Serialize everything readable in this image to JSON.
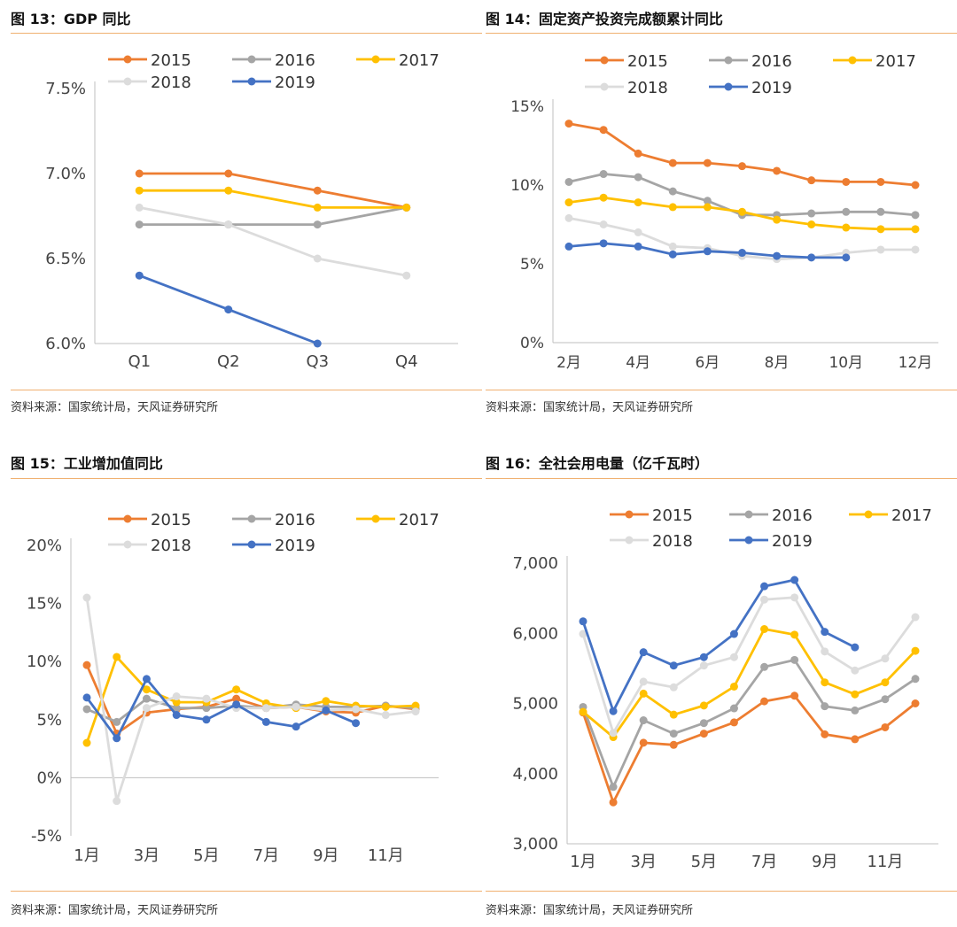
{
  "panels": [
    {
      "title": "图 13：GDP 同比",
      "source": "资料来源：国家统计局，天风证券研究所",
      "chart_data": {
        "type": "line",
        "categories": [
          "Q1",
          "Q2",
          "Q3",
          "Q4"
        ],
        "ylim": [
          6.0,
          7.5
        ],
        "yticks": [
          "6.0%",
          "6.5%",
          "7.0%",
          "7.5%"
        ],
        "series": [
          {
            "name": "2015",
            "color": "#ed7d31",
            "values": [
              7.0,
              7.0,
              6.9,
              6.8
            ]
          },
          {
            "name": "2016",
            "color": "#a5a5a5",
            "values": [
              6.7,
              6.7,
              6.7,
              6.8
            ]
          },
          {
            "name": "2017",
            "color": "#ffc000",
            "values": [
              6.9,
              6.9,
              6.8,
              6.8
            ]
          },
          {
            "name": "2018",
            "color": "#dcdcdc",
            "values": [
              6.8,
              6.7,
              6.5,
              6.4
            ]
          },
          {
            "name": "2019",
            "color": "#4472c4",
            "values": [
              6.4,
              6.2,
              6.0,
              null
            ]
          }
        ]
      }
    },
    {
      "title": "图 14：固定资产投资完成额累计同比",
      "source": "资料来源：国家统计局，天风证券研究所",
      "chart_data": {
        "type": "line",
        "categories": [
          "2月",
          "3月",
          "4月",
          "5月",
          "6月",
          "7月",
          "8月",
          "9月",
          "10月",
          "11月",
          "12月"
        ],
        "ylim": [
          0,
          15
        ],
        "yticks": [
          "0%",
          "5%",
          "10%",
          "15%"
        ],
        "xtick_labels": [
          "2月",
          "4月",
          "6月",
          "8月",
          "10月",
          "12月"
        ],
        "series": [
          {
            "name": "2015",
            "color": "#ed7d31",
            "values": [
              13.9,
              13.5,
              12.0,
              11.4,
              11.4,
              11.2,
              10.9,
              10.3,
              10.2,
              10.2,
              10.0
            ]
          },
          {
            "name": "2016",
            "color": "#a5a5a5",
            "values": [
              10.2,
              10.7,
              10.5,
              9.6,
              9.0,
              8.1,
              8.1,
              8.2,
              8.3,
              8.3,
              8.1
            ]
          },
          {
            "name": "2017",
            "color": "#ffc000",
            "values": [
              8.9,
              9.2,
              8.9,
              8.6,
              8.6,
              8.3,
              7.8,
              7.5,
              7.3,
              7.2,
              7.2
            ]
          },
          {
            "name": "2018",
            "color": "#dcdcdc",
            "values": [
              7.9,
              7.5,
              7.0,
              6.1,
              6.0,
              5.5,
              5.3,
              5.4,
              5.7,
              5.9,
              5.9
            ]
          },
          {
            "name": "2019",
            "color": "#4472c4",
            "values": [
              6.1,
              6.3,
              6.1,
              5.6,
              5.8,
              5.7,
              5.5,
              5.4,
              5.4,
              null,
              null
            ]
          }
        ]
      }
    },
    {
      "title": "图 15：工业增加值同比",
      "source": "资料来源：国家统计局，天风证券研究所",
      "chart_data": {
        "type": "line",
        "categories": [
          "1月",
          "2月",
          "3月",
          "4月",
          "5月",
          "6月",
          "7月",
          "8月",
          "9月",
          "10月",
          "11月",
          "12月"
        ],
        "ylim": [
          -5,
          20
        ],
        "yticks": [
          "-5%",
          "0%",
          "5%",
          "10%",
          "15%",
          "20%"
        ],
        "xtick_labels": [
          "1月",
          "3月",
          "5月",
          "7月",
          "9月",
          "11月"
        ],
        "series": [
          {
            "name": "2015",
            "color": "#ed7d31",
            "values": [
              9.7,
              3.8,
              5.6,
              5.9,
              6.1,
              6.8,
              6.0,
              6.1,
              5.7,
              5.6,
              6.2,
              5.9
            ]
          },
          {
            "name": "2016",
            "color": "#a5a5a5",
            "values": [
              5.9,
              4.8,
              6.8,
              6.0,
              6.0,
              6.2,
              6.0,
              6.3,
              6.1,
              6.1,
              6.2,
              6.0
            ]
          },
          {
            "name": "2017",
            "color": "#ffc000",
            "values": [
              3.0,
              10.4,
              7.6,
              6.5,
              6.5,
              7.6,
              6.4,
              6.0,
              6.6,
              6.2,
              6.1,
              6.2
            ]
          },
          {
            "name": "2018",
            "color": "#dcdcdc",
            "values": [
              15.5,
              -2.0,
              6.0,
              7.0,
              6.8,
              6.0,
              6.0,
              6.1,
              5.8,
              5.9,
              5.4,
              5.7
            ]
          },
          {
            "name": "2019",
            "color": "#4472c4",
            "values": [
              6.9,
              3.4,
              8.5,
              5.4,
              5.0,
              6.3,
              4.8,
              4.4,
              5.8,
              4.7,
              null,
              null
            ]
          }
        ]
      }
    },
    {
      "title": "图 16：全社会用电量（亿千瓦时）",
      "source": "资料来源：国家统计局，天风证券研究所",
      "chart_data": {
        "type": "line",
        "categories": [
          "1月",
          "2月",
          "3月",
          "4月",
          "5月",
          "6月",
          "7月",
          "8月",
          "9月",
          "10月",
          "11月",
          "12月"
        ],
        "ylim": [
          3000,
          7000
        ],
        "yticks": [
          "3,000",
          "4,000",
          "5,000",
          "6,000",
          "7,000"
        ],
        "xtick_labels": [
          "1月",
          "3月",
          "5月",
          "7月",
          "9月",
          "11月"
        ],
        "series": [
          {
            "name": "2015",
            "color": "#ed7d31",
            "values": [
              4870,
              3590,
              4440,
              4410,
              4570,
              4730,
              5030,
              5110,
              4560,
              4490,
              4660,
              5000
            ]
          },
          {
            "name": "2016",
            "color": "#a5a5a5",
            "values": [
              4950,
              3810,
              4760,
              4570,
              4720,
              4930,
              5520,
              5620,
              4960,
              4900,
              5060,
              5350
            ]
          },
          {
            "name": "2017",
            "color": "#ffc000",
            "values": [
              4880,
              4520,
              5140,
              4840,
              4970,
              5240,
              6060,
              5980,
              5300,
              5130,
              5300,
              5750
            ]
          },
          {
            "name": "2018",
            "color": "#dcdcdc",
            "values": [
              5990,
              4580,
              5310,
              5230,
              5540,
              5660,
              6480,
              6510,
              5740,
              5470,
              5640,
              6230
            ]
          },
          {
            "name": "2019",
            "color": "#4472c4",
            "values": [
              6170,
              4890,
              5730,
              5540,
              5660,
              5990,
              6670,
              6760,
              6020,
              5800,
              null,
              null
            ]
          }
        ]
      }
    }
  ]
}
